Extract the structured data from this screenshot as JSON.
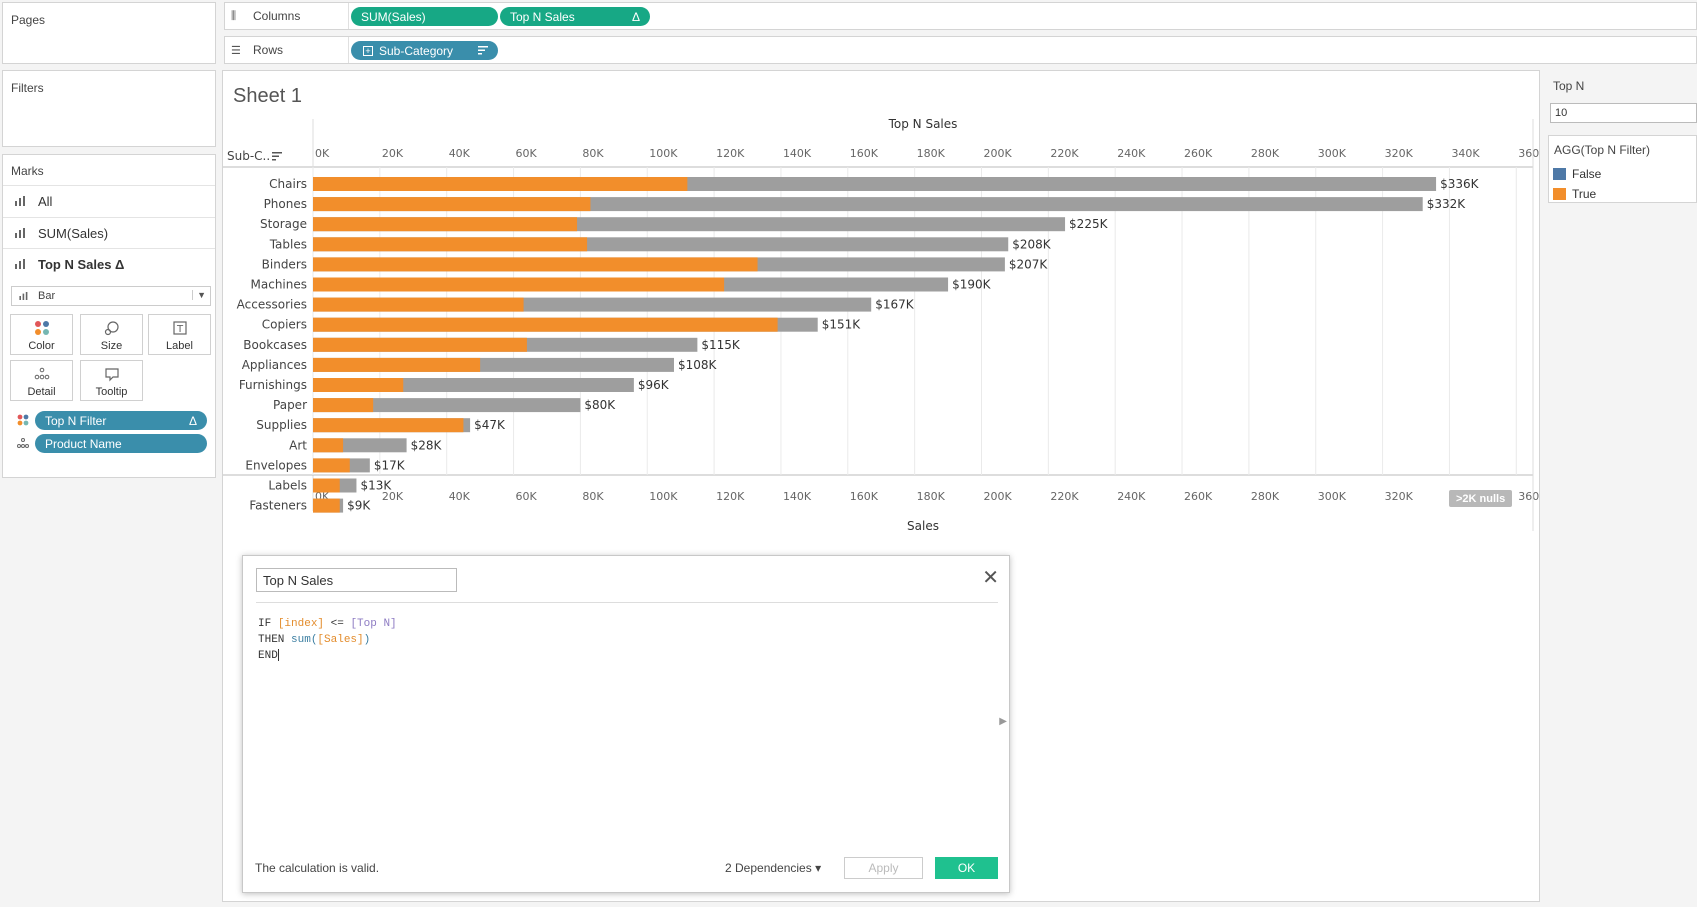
{
  "left_panel": {
    "pages_title": "Pages",
    "filters_title": "Filters",
    "marks_title": "Marks",
    "marks_rows": [
      "All",
      "SUM(Sales)",
      "Top N Sales Δ"
    ],
    "mark_type": "Bar",
    "buttons": {
      "color": "Color",
      "size": "Size",
      "label": "Label",
      "detail": "Detail",
      "tooltip": "Tooltip"
    },
    "mark_pills": [
      "Top N Filter",
      "Product Name"
    ],
    "pill_delta": "Δ"
  },
  "shelves": {
    "columns_label": "Columns",
    "rows_label": "Rows",
    "columns_pills": [
      "SUM(Sales)",
      "Top N Sales"
    ],
    "columns_delta": "Δ",
    "rows_pills": [
      "Sub-Category"
    ]
  },
  "sheet": {
    "title": "Sheet 1",
    "row_header": "Sub-C..",
    "nulls_badge": ">2K nulls"
  },
  "parameter": {
    "title": "Top N",
    "value": "10"
  },
  "legend": {
    "title": "AGG(Top N Filter)",
    "items": [
      {
        "label": "False",
        "color": "#4e79a7"
      },
      {
        "label": "True",
        "color": "#f28e2b"
      }
    ]
  },
  "colors": {
    "orange": "#f28e2b",
    "gray": "#9e9e9e",
    "blue_pill": "#3a8eab",
    "green_pill": "#17a885"
  },
  "chart_data": {
    "type": "bar",
    "orientation": "horizontal",
    "title": "Top N Sales",
    "xlabel": "Sales",
    "xlim": [
      0,
      365000
    ],
    "ticks": [
      0,
      20000,
      40000,
      60000,
      80000,
      100000,
      120000,
      140000,
      160000,
      180000,
      200000,
      220000,
      240000,
      260000,
      280000,
      300000,
      320000,
      340000,
      360000
    ],
    "tick_labels": [
      "0K",
      "20K",
      "40K",
      "60K",
      "80K",
      "100K",
      "120K",
      "140K",
      "160K",
      "180K",
      "200K",
      "220K",
      "240K",
      "260K",
      "280K",
      "300K",
      "320K",
      "340K",
      "360K"
    ],
    "categories": [
      "Chairs",
      "Phones",
      "Storage",
      "Tables",
      "Binders",
      "Machines",
      "Accessories",
      "Copiers",
      "Bookcases",
      "Appliances",
      "Furnishings",
      "Paper",
      "Supplies",
      "Art",
      "Envelopes",
      "Labels",
      "Fasteners"
    ],
    "series": [
      {
        "name": "SUM(Sales)",
        "values": [
          336000,
          332000,
          225000,
          208000,
          207000,
          190000,
          167000,
          151000,
          115000,
          108000,
          96000,
          80000,
          47000,
          28000,
          17000,
          13000,
          9000
        ],
        "color": "#9e9e9e"
      },
      {
        "name": "Top N Sales",
        "values": [
          112000,
          83000,
          79000,
          82000,
          133000,
          123000,
          63000,
          139000,
          64000,
          50000,
          27000,
          18000,
          45000,
          9000,
          11000,
          8000,
          8000
        ],
        "color": "#f28e2b"
      }
    ],
    "data_labels": [
      "$336K",
      "$332K",
      "$225K",
      "$208K",
      "$207K",
      "$190K",
      "$167K",
      "$151K",
      "$115K",
      "$108K",
      "$96K",
      "$80K",
      "$47K",
      "$28K",
      "$17K",
      "$13K",
      "$9K"
    ],
    "grid": true
  },
  "dialog": {
    "calc_name": "Top N Sales",
    "code": {
      "if": "IF",
      "index": "[index]",
      "lte": "<=",
      "topn": "[Top N]",
      "then": "THEN",
      "sum": "sum(",
      "sales": "[Sales]",
      "close_paren": ")",
      "end": "END"
    },
    "status": "The calculation is valid.",
    "dependencies": "2 Dependencies ▾",
    "apply": "Apply",
    "ok": "OK"
  }
}
